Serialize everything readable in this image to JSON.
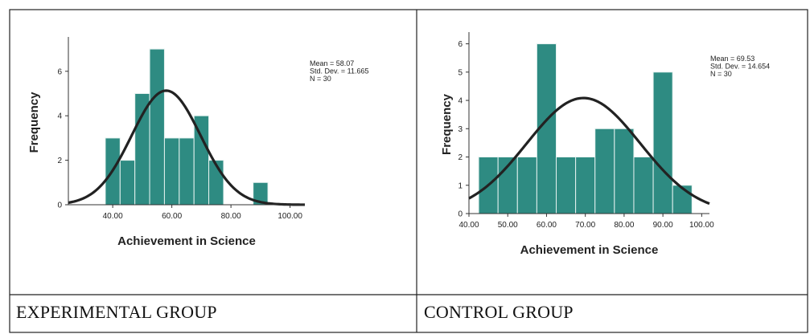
{
  "captions": {
    "left": "EXPERIMENTAL GROUP",
    "right": "CONTROL GROUP"
  },
  "colors": {
    "bar": "#2e8b82",
    "bar_edge": "#e6f2f0",
    "curve": "#222222",
    "axis": "#333333"
  },
  "chart_data": [
    {
      "type": "bar",
      "subtype": "histogram",
      "xlabel": "Achievement in Science",
      "ylabel": "Frequency",
      "xlim": [
        25,
        105
      ],
      "ylim": [
        0,
        7.4
      ],
      "xticks": [
        40,
        60,
        80,
        100
      ],
      "xtick_labels": [
        "40.00",
        "60.00",
        "80.00",
        "100.00"
      ],
      "yticks": [
        0,
        2,
        4,
        6
      ],
      "yticklabels": [
        "0",
        "2",
        "4",
        "6"
      ],
      "bin_width": 5,
      "bins_start": [
        37.5,
        42.5,
        47.5,
        52.5,
        57.5,
        62.5,
        67.5,
        72.5,
        77.5,
        82.5,
        87.5
      ],
      "values": [
        3,
        2,
        5,
        7,
        3,
        3,
        4,
        2,
        0,
        0,
        1
      ],
      "normal_curve": {
        "mean": 58.07,
        "sd": 11.665,
        "n": 30
      },
      "stats_text": [
        "Mean = 58.07",
        "Std. Dev. = 11.665",
        "N = 30"
      ],
      "grid": false
    },
    {
      "type": "bar",
      "subtype": "histogram",
      "xlabel": "Achievement in Science",
      "ylabel": "Frequency",
      "xlim": [
        40,
        102
      ],
      "ylim": [
        0,
        6.3
      ],
      "xticks": [
        40,
        50,
        60,
        70,
        80,
        90,
        100
      ],
      "xtick_labels": [
        "40.00",
        "50.00",
        "60.00",
        "70.00",
        "80.00",
        "90.00",
        "100.00"
      ],
      "yticks": [
        0,
        1,
        2,
        3,
        4,
        5,
        6
      ],
      "yticklabels": [
        "0",
        "1",
        "2",
        "3",
        "4",
        "5",
        "6"
      ],
      "bin_width": 5,
      "bins_start": [
        42.5,
        47.5,
        52.5,
        57.5,
        62.5,
        67.5,
        72.5,
        77.5,
        82.5,
        87.5,
        92.5
      ],
      "values": [
        2,
        2,
        2,
        6,
        2,
        2,
        3,
        3,
        2,
        5,
        1
      ],
      "normal_curve": {
        "mean": 69.53,
        "sd": 14.654,
        "n": 30
      },
      "stats_text": [
        "Mean = 69.53",
        "Std. Dev. = 14.654",
        "N = 30"
      ],
      "grid": false
    }
  ]
}
